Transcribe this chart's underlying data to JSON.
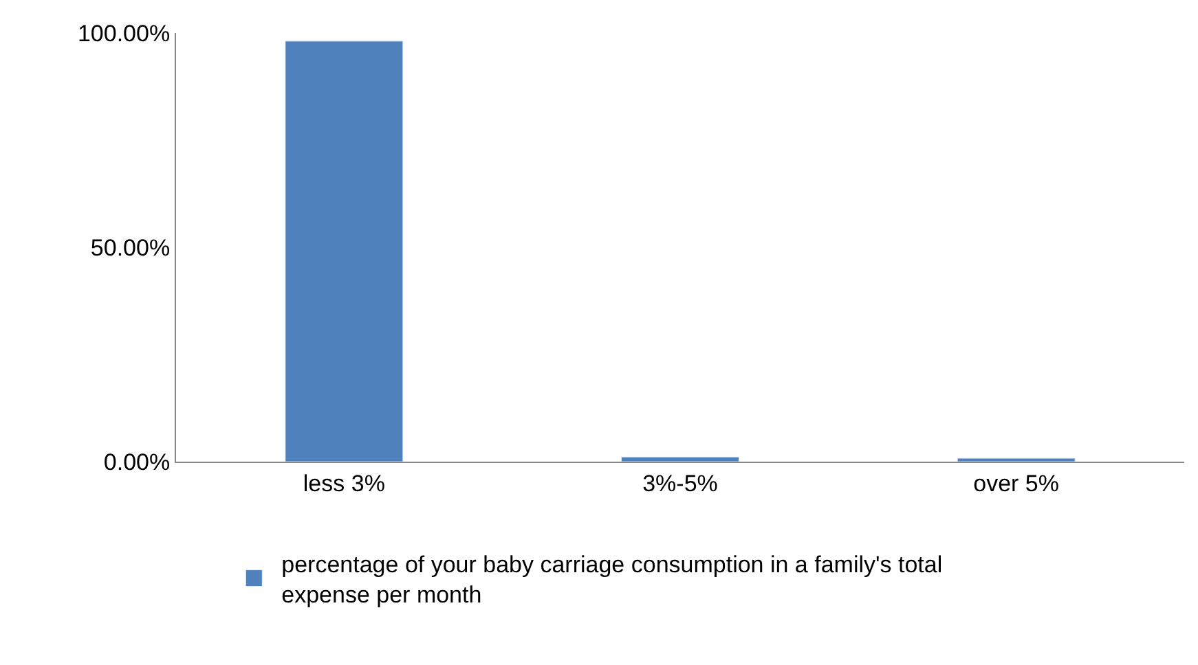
{
  "chart_data": {
    "type": "bar",
    "categories": [
      "less 3%",
      "3%-5%",
      "over 5%"
    ],
    "series": [
      {
        "name": "percentage of your baby carriage consumption in a family's total expense per month",
        "color": "#4f81bd",
        "values": [
          98.1,
          1.1,
          0.8
        ]
      }
    ],
    "ylim": [
      0,
      100
    ],
    "yticks": [
      {
        "value": 0,
        "label": "0.00%"
      },
      {
        "value": 50,
        "label": "50.00%"
      },
      {
        "value": 100,
        "label": "100.00%"
      }
    ],
    "legend": "bottom"
  }
}
